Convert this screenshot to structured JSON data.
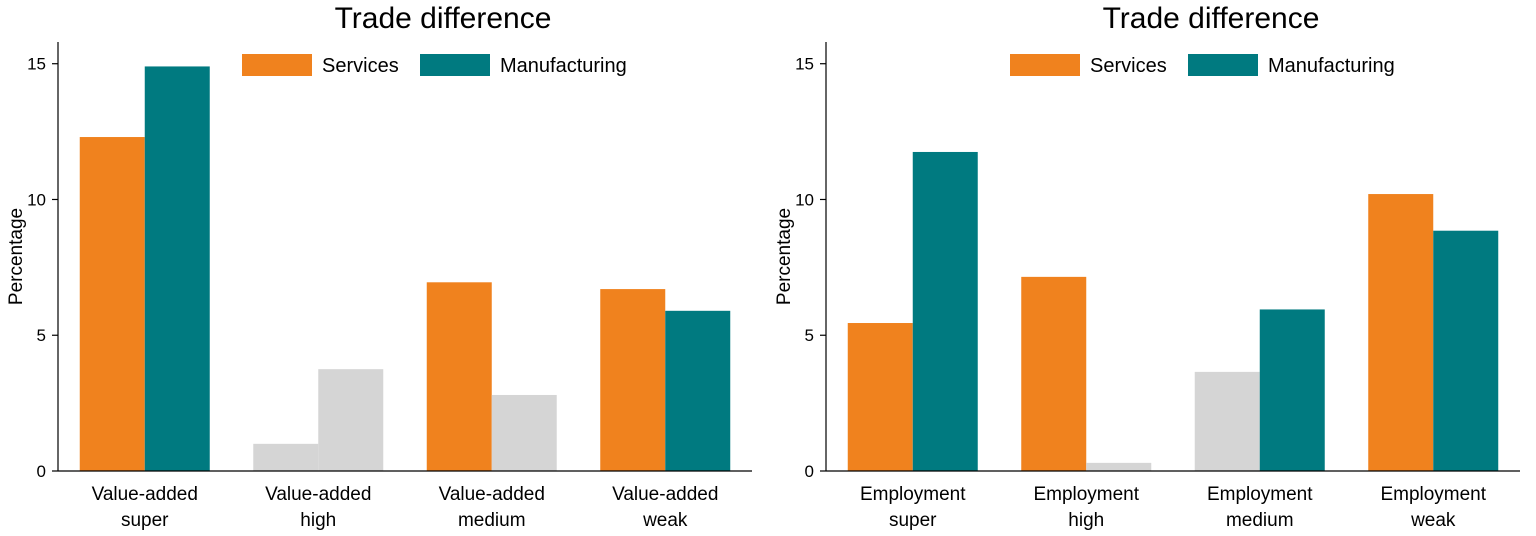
{
  "colors": {
    "services": "#F0821E",
    "manufacturing": "#007A80",
    "muted": "#D5D5D5",
    "axis": "#000000"
  },
  "chart_data": [
    {
      "type": "bar",
      "title": "Trade difference",
      "ylabel": "Percentage",
      "xlabel": "",
      "ylim": [
        0,
        15.8
      ],
      "yticks": [
        0,
        5,
        10,
        15
      ],
      "categories": [
        [
          "Value-added",
          "super"
        ],
        [
          "Value-added",
          "high"
        ],
        [
          "Value-added",
          "medium"
        ],
        [
          "Value-added",
          "weak"
        ]
      ],
      "series": [
        {
          "name": "Services",
          "values": [
            12.3,
            1.0,
            6.95,
            6.7
          ],
          "muted": [
            false,
            true,
            false,
            false
          ]
        },
        {
          "name": "Manufacturing",
          "values": [
            14.9,
            3.75,
            2.8,
            5.9
          ],
          "muted": [
            false,
            true,
            true,
            false
          ]
        }
      ],
      "legend": "top-center",
      "grid": false
    },
    {
      "type": "bar",
      "title": "Trade difference",
      "ylabel": "Percentage",
      "xlabel": "",
      "ylim": [
        0,
        15.8
      ],
      "yticks": [
        0,
        5,
        10,
        15
      ],
      "categories": [
        [
          "Employment",
          "super"
        ],
        [
          "Employment",
          "high"
        ],
        [
          "Employment",
          "medium"
        ],
        [
          "Employment",
          "weak"
        ]
      ],
      "series": [
        {
          "name": "Services",
          "values": [
            5.45,
            7.15,
            3.65,
            10.2
          ],
          "muted": [
            false,
            false,
            true,
            false
          ]
        },
        {
          "name": "Manufacturing",
          "values": [
            11.75,
            0.3,
            5.95,
            8.85
          ],
          "muted": [
            false,
            true,
            false,
            false
          ]
        }
      ],
      "legend": "top-center",
      "grid": false
    }
  ]
}
